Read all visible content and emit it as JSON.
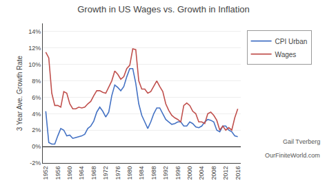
{
  "chart_data": {
    "type": "line",
    "title": "Growth in US Wages vs. Growth in Inflation",
    "ylabel": "3 Year Ave. Growth Rate",
    "annotations": [
      "Gail Tverberg",
      "OurFiniteWorld.com"
    ],
    "x": [
      1952,
      1953,
      1954,
      1955,
      1956,
      1957,
      1958,
      1959,
      1960,
      1961,
      1962,
      1963,
      1964,
      1965,
      1966,
      1967,
      1968,
      1969,
      1970,
      1971,
      1972,
      1973,
      1974,
      1975,
      1976,
      1977,
      1978,
      1979,
      1980,
      1981,
      1982,
      1983,
      1984,
      1985,
      1986,
      1987,
      1988,
      1989,
      1990,
      1991,
      1992,
      1993,
      1994,
      1995,
      1996,
      1997,
      1998,
      1999,
      2000,
      2001,
      2002,
      2003,
      2004,
      2005,
      2006,
      2007,
      2008,
      2009,
      2010,
      2011,
      2012,
      2013,
      2014,
      2015,
      2016
    ],
    "series": [
      {
        "name": "CPI Urban",
        "color": "#4472C4",
        "values": [
          0.043,
          0.005,
          0.003,
          0.003,
          0.013,
          0.022,
          0.02,
          0.013,
          0.014,
          0.01,
          0.011,
          0.012,
          0.013,
          0.015,
          0.022,
          0.025,
          0.031,
          0.042,
          0.048,
          0.043,
          0.036,
          0.042,
          0.062,
          0.075,
          0.072,
          0.068,
          0.073,
          0.085,
          0.095,
          0.095,
          0.077,
          0.052,
          0.038,
          0.03,
          0.022,
          0.03,
          0.04,
          0.047,
          0.047,
          0.04,
          0.033,
          0.03,
          0.027,
          0.028,
          0.03,
          0.03,
          0.025,
          0.025,
          0.03,
          0.028,
          0.024,
          0.023,
          0.025,
          0.03,
          0.033,
          0.032,
          0.03,
          0.02,
          0.018,
          0.025,
          0.025,
          0.02,
          0.018,
          0.013,
          0.012
        ]
      },
      {
        "name": "Wages",
        "color": "#C0504D",
        "values": [
          0.115,
          0.108,
          0.065,
          0.05,
          0.05,
          0.048,
          0.067,
          0.065,
          0.052,
          0.046,
          0.046,
          0.048,
          0.047,
          0.048,
          0.052,
          0.055,
          0.062,
          0.068,
          0.068,
          0.066,
          0.065,
          0.072,
          0.08,
          0.092,
          0.088,
          0.082,
          0.085,
          0.095,
          0.099,
          0.119,
          0.118,
          0.08,
          0.07,
          0.07,
          0.065,
          0.067,
          0.073,
          0.08,
          0.073,
          0.067,
          0.052,
          0.044,
          0.038,
          0.035,
          0.033,
          0.03,
          0.05,
          0.053,
          0.05,
          0.043,
          0.04,
          0.03,
          0.03,
          0.028,
          0.04,
          0.042,
          0.038,
          0.032,
          0.02,
          0.025,
          0.02,
          0.023,
          0.02,
          0.035,
          0.046
        ]
      }
    ],
    "xlim": [
      1951,
      2017
    ],
    "xticks": [
      1952,
      1956,
      1960,
      1964,
      1968,
      1972,
      1976,
      1980,
      1984,
      1988,
      1992,
      1996,
      2000,
      2004,
      2008,
      2012,
      2016
    ],
    "ylim": [
      -0.02,
      0.15
    ],
    "yticks": [
      {
        "value": -0.02,
        "label": "-2%"
      },
      {
        "value": 0.0,
        "label": "0%"
      },
      {
        "value": 0.02,
        "label": "2%"
      },
      {
        "value": 0.04,
        "label": "4%"
      },
      {
        "value": 0.06,
        "label": "6%"
      },
      {
        "value": 0.08,
        "label": "8%"
      },
      {
        "value": 0.1,
        "label": "10%"
      },
      {
        "value": 0.12,
        "label": "12%"
      },
      {
        "value": 0.14,
        "label": "14%"
      }
    ],
    "grid": true,
    "legend": "right"
  }
}
